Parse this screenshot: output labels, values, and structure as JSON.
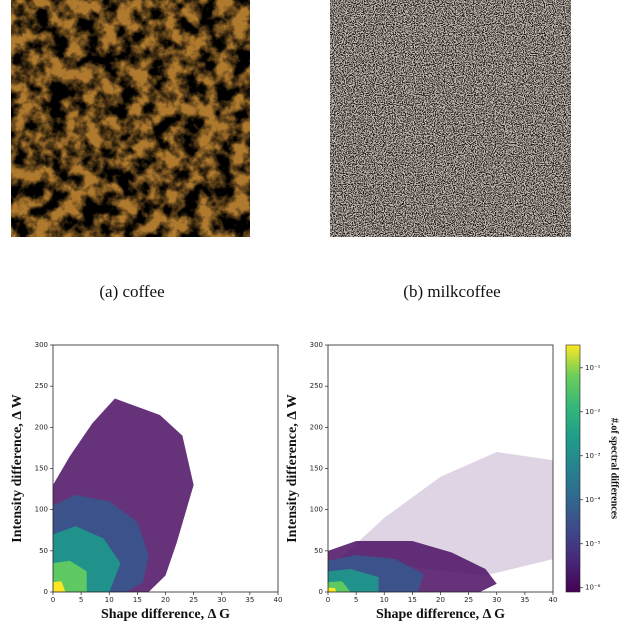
{
  "figures": [
    {
      "caption": "(a) coffee"
    },
    {
      "caption": "(b) milkcoffee"
    }
  ],
  "chart_data": [
    {
      "type": "heatmap",
      "xlabel": "Shape difference, Δ G",
      "ylabel": "Intensity difference, Δ W",
      "xlim": [
        0,
        40
      ],
      "ylim": [
        0,
        300
      ],
      "xticks": [
        0,
        5,
        10,
        15,
        20,
        25,
        30,
        35,
        40
      ],
      "yticks": [
        0,
        50,
        100,
        150,
        200,
        250,
        300
      ]
    },
    {
      "type": "heatmap",
      "xlabel": "Shape difference, Δ G",
      "ylabel": "Intensity difference, Δ W",
      "xlim": [
        0,
        40
      ],
      "ylim": [
        0,
        300
      ],
      "xticks": [
        0,
        5,
        10,
        15,
        20,
        25,
        30,
        35,
        40
      ],
      "yticks": [
        0,
        50,
        100,
        150,
        200,
        250,
        300
      ],
      "colorbar": {
        "label": "#.of spectral differences",
        "log": true,
        "lim": [
          8e-07,
          0.33
        ],
        "ticks": [
          {
            "value": 0.1,
            "label": "10⁻¹"
          },
          {
            "value": 0.01,
            "label": "10⁻²"
          },
          {
            "value": 0.001,
            "label": "10⁻³"
          },
          {
            "value": 0.0001,
            "label": "10⁻⁴"
          },
          {
            "value": 1e-05,
            "label": "10⁻⁵"
          },
          {
            "value": 1e-06,
            "label": "10⁻⁶"
          }
        ]
      }
    }
  ]
}
